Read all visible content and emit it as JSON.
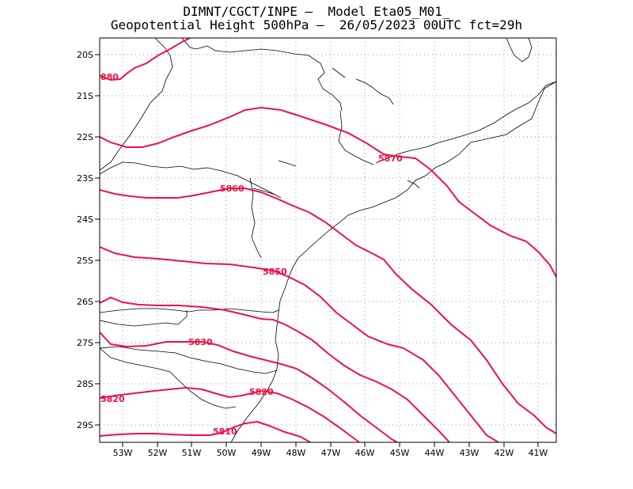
{
  "title": {
    "line1": "DIMNT/CGCT/INPE –  Model Eta05_M01_",
    "line2": "Geopotential Height 500hPa –  26/05/2023 00UTC fct=29h"
  },
  "colors": {
    "contour": "#ee1144",
    "coast": "#000000",
    "grid": "#9a9a9a"
  },
  "axes": {
    "lat_labels": [
      "20S",
      "21S",
      "22S",
      "23S",
      "24S",
      "25S",
      "26S",
      "27S",
      "28S",
      "29S"
    ],
    "lon_labels": [
      "53W",
      "52W",
      "51W",
      "50W",
      "49W",
      "48W",
      "47W",
      "46W",
      "45W",
      "44W",
      "43W",
      "42W",
      "41W"
    ]
  },
  "contour_labels": {
    "c5880": "880",
    "c5870": "5870",
    "c5860": "5860",
    "c5850": "5850",
    "c5830": "5830",
    "c5820a": "5820",
    "c5820b": "5820",
    "c5810": "5810"
  }
}
